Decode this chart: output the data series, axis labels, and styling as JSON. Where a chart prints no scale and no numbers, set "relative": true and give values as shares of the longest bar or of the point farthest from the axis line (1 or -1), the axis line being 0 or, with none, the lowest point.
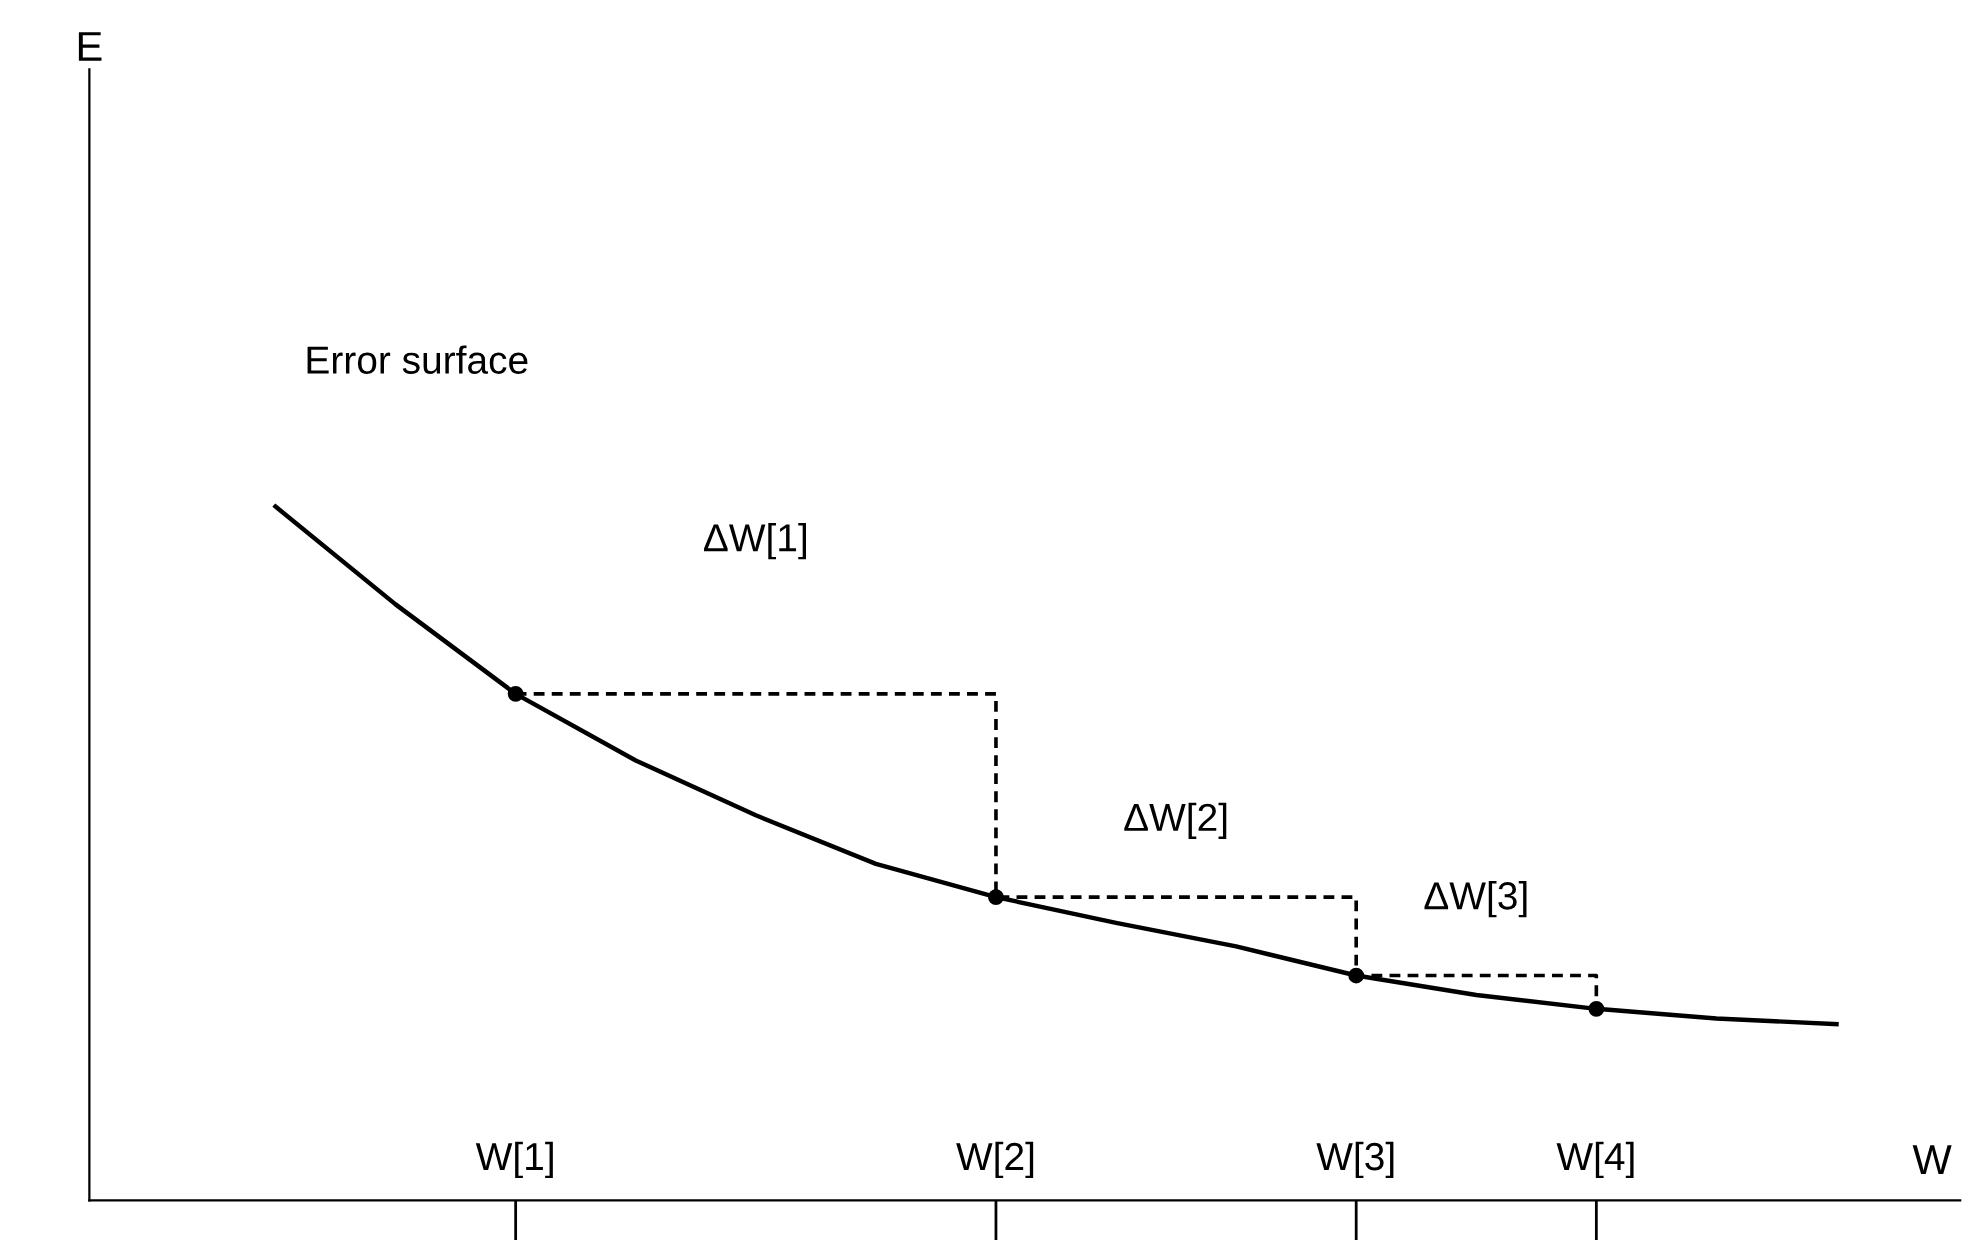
{
  "chart_data": {
    "type": "line",
    "relative": true,
    "xlabel": "W",
    "categories": [
      null,
      null,
      "W[1]",
      null,
      null,
      null,
      "W[2]",
      null,
      null,
      "W[3]",
      null,
      "W[4]",
      null,
      null
    ],
    "series": [
      {
        "color": "#000000",
        "line_style": "solid",
        "values": [
          1.0,
          0.859,
          0.73,
          0.634,
          0.555,
          0.485,
          0.437,
          0.4,
          0.366,
          0.324,
          0.296,
          0.276,
          0.262,
          0.254
        ]
      },
      {
        "type": "step",
        "color": "#000000",
        "line_style": "dashed",
        "values": [
          null,
          null,
          0.73,
          0.73,
          0.73,
          0.73,
          0.437,
          0.437,
          0.437,
          0.324,
          0.324,
          0.276,
          null,
          null
        ]
      },
      {
        "type": "scatter",
        "color": "#000000",
        "marker": "circle",
        "values": [
          null,
          null,
          0.73,
          null,
          null,
          null,
          0.437,
          null,
          null,
          0.324,
          null,
          0.276,
          null,
          null
        ]
      }
    ],
    "annotations": [
      "Error surface",
      "ΔW[1]",
      "ΔW[2]",
      "ΔW[3]",
      "E"
    ],
    "grid": false,
    "legend": false
  }
}
